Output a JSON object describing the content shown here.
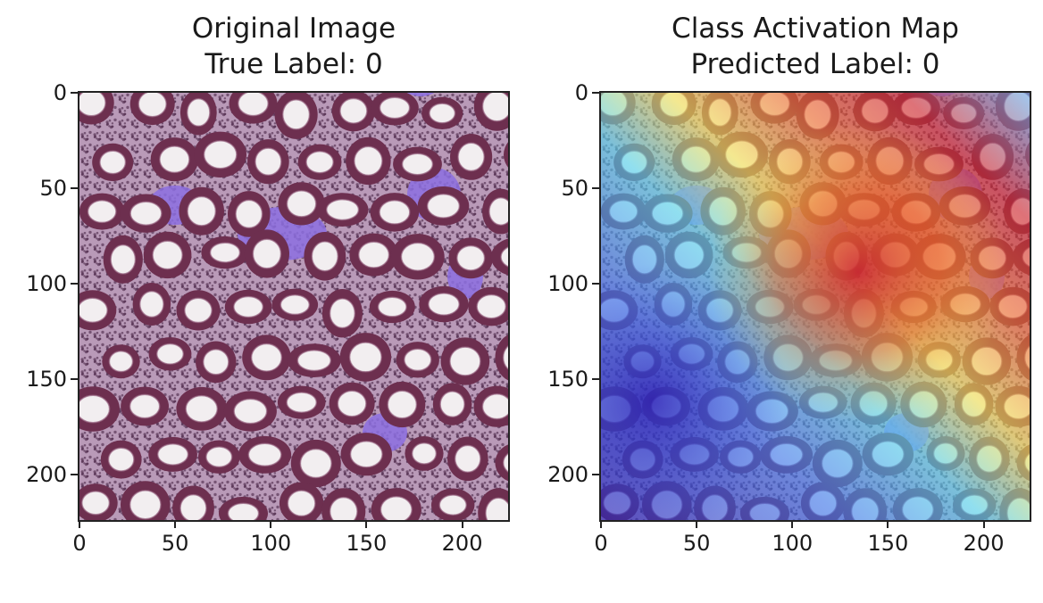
{
  "panels": [
    {
      "id": "original",
      "title_line1": "Original Image",
      "title_line2": "True Label: 0",
      "xticks": [
        "0",
        "50",
        "100",
        "150",
        "200"
      ],
      "yticks": [
        "0",
        "50",
        "100",
        "150",
        "200"
      ],
      "xlim": [
        0,
        224
      ],
      "ylim": [
        224,
        0
      ]
    },
    {
      "id": "cam",
      "title_line1": "Class Activation Map",
      "title_line2": "Predicted Label: 0",
      "xticks": [
        "0",
        "50",
        "100",
        "150",
        "200"
      ],
      "yticks": [
        "0",
        "50",
        "100",
        "150",
        "200"
      ],
      "xlim": [
        0,
        224
      ],
      "ylim": [
        224,
        0
      ]
    }
  ],
  "colors": {
    "tissue_base": "#b99ab8",
    "gland_wall": "#6d2f4f",
    "lumen": "#f2eef0",
    "purple_patch": "#8c6ee0",
    "jet_low": "#3d3bd0",
    "jet_mid": "#5fd0e8",
    "jet_high": "#d2262e"
  }
}
